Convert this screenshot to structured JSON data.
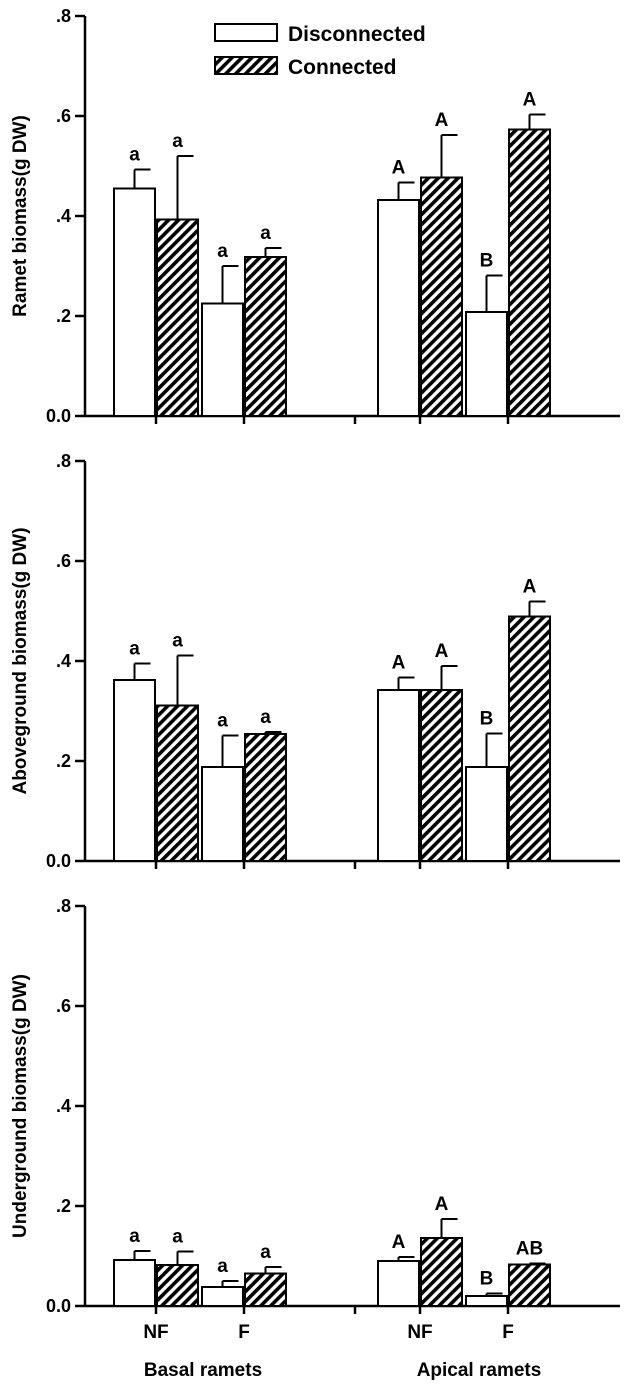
{
  "chart_data": {
    "type": "bar",
    "shared_x": {
      "groups": [
        "Basal ramets",
        "Apical ramets"
      ],
      "categories": [
        "NF",
        "F"
      ]
    },
    "legend": {
      "placement": "top-center",
      "entries": [
        {
          "name": "Disconnected",
          "fill": "white"
        },
        {
          "name": "Connected",
          "fill": "hatched"
        }
      ]
    },
    "panels": [
      {
        "ylabel": "Ramet biomass(g DW)",
        "ylim": [
          0,
          0.8
        ],
        "yticks": [
          0,
          0.2,
          0.4,
          0.6,
          0.8
        ],
        "ytick_labels": [
          "0.0",
          ".2",
          ".4",
          ".6",
          ".8"
        ],
        "series": [
          {
            "name": "Disconnected",
            "values": [
              0.455,
              0.225,
              0.432,
              0.208
            ],
            "errors": [
              0.038,
              0.075,
              0.035,
              0.073
            ],
            "letters": [
              "a",
              "a",
              "A",
              "B"
            ]
          },
          {
            "name": "Connected",
            "values": [
              0.393,
              0.318,
              0.477,
              0.573
            ],
            "errors": [
              0.127,
              0.018,
              0.085,
              0.03
            ],
            "letters": [
              "a",
              "a",
              "A",
              "A"
            ]
          }
        ]
      },
      {
        "ylabel": "Aboveground biomass(g DW)",
        "ylim": [
          0,
          0.8
        ],
        "yticks": [
          0,
          0.2,
          0.4,
          0.6,
          0.8
        ],
        "ytick_labels": [
          "0.0",
          ".2",
          ".4",
          ".6",
          ".8"
        ],
        "series": [
          {
            "name": "Disconnected",
            "values": [
              0.362,
              0.188,
              0.342,
              0.188
            ],
            "errors": [
              0.033,
              0.063,
              0.025,
              0.067
            ],
            "letters": [
              "a",
              "a",
              "A",
              "B"
            ]
          },
          {
            "name": "Connected",
            "values": [
              0.311,
              0.254,
              0.342,
              0.489
            ],
            "errors": [
              0.1,
              0.004,
              0.048,
              0.03
            ],
            "letters": [
              "a",
              "a",
              "A",
              "A"
            ]
          }
        ]
      },
      {
        "ylabel": "Underground biomass(g DW)",
        "ylim": [
          0,
          0.8
        ],
        "yticks": [
          0,
          0.2,
          0.4,
          0.6,
          0.8
        ],
        "ytick_labels": [
          "0.0",
          ".2",
          ".4",
          ".6",
          ".8"
        ],
        "series": [
          {
            "name": "Disconnected",
            "values": [
              0.092,
              0.038,
              0.09,
              0.02
            ],
            "errors": [
              0.018,
              0.012,
              0.008,
              0.005
            ],
            "letters": [
              "a",
              "a",
              "A",
              "B"
            ]
          },
          {
            "name": "Connected",
            "values": [
              0.082,
              0.065,
              0.136,
              0.083
            ],
            "errors": [
              0.027,
              0.013,
              0.038,
              0.002
            ],
            "letters": [
              "a",
              "a",
              "A",
              "AB"
            ]
          }
        ]
      }
    ]
  }
}
